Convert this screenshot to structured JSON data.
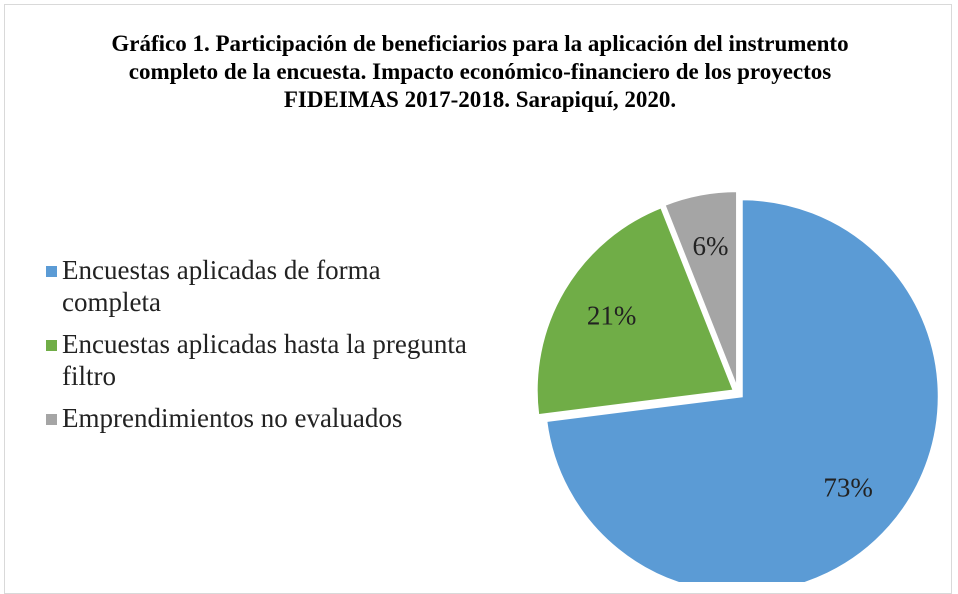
{
  "chart_data": {
    "type": "pie",
    "title": "Gráfico 1. Participación de beneficiarios para la aplicación del instrumento completo de la encuesta. Impacto económico-financiero de los proyectos FIDEIMAS 2017-2018. Sarapiquí, 2020.",
    "categories": [
      "Encuestas aplicadas de forma completa",
      "Encuestas aplicadas hasta la pregunta filtro",
      "Emprendimientos no evaluados"
    ],
    "values": [
      73,
      21,
      6
    ],
    "value_labels": [
      "73%",
      "21%",
      "6%"
    ],
    "colors": [
      "#5b9bd5",
      "#70ad47",
      "#a5a5a5"
    ],
    "legend": "left"
  }
}
